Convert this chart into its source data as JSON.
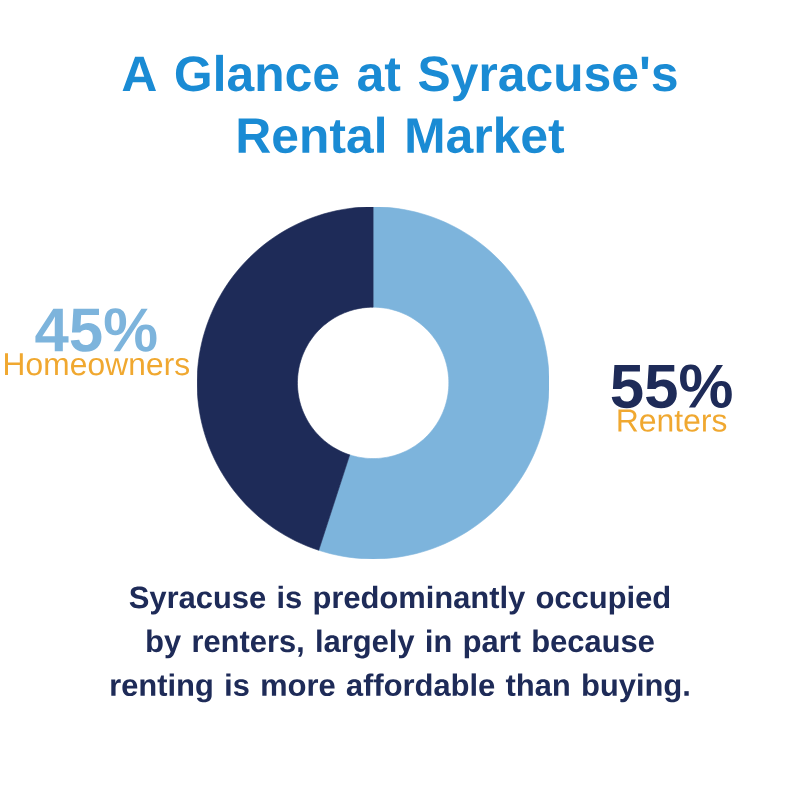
{
  "chart_data": {
    "type": "donut",
    "title": "A Glance at Syracuse's Rental Market",
    "categories": [
      "Renters",
      "Homeowners"
    ],
    "values": [
      55,
      45
    ],
    "value_labels": [
      "55%",
      "45%"
    ],
    "colors": [
      "#7db4dc",
      "#1e2b58"
    ],
    "annotations": [
      "Syracuse is predominantly occupied by renters, largely in part because renting is more affordable than buying."
    ]
  }
}
